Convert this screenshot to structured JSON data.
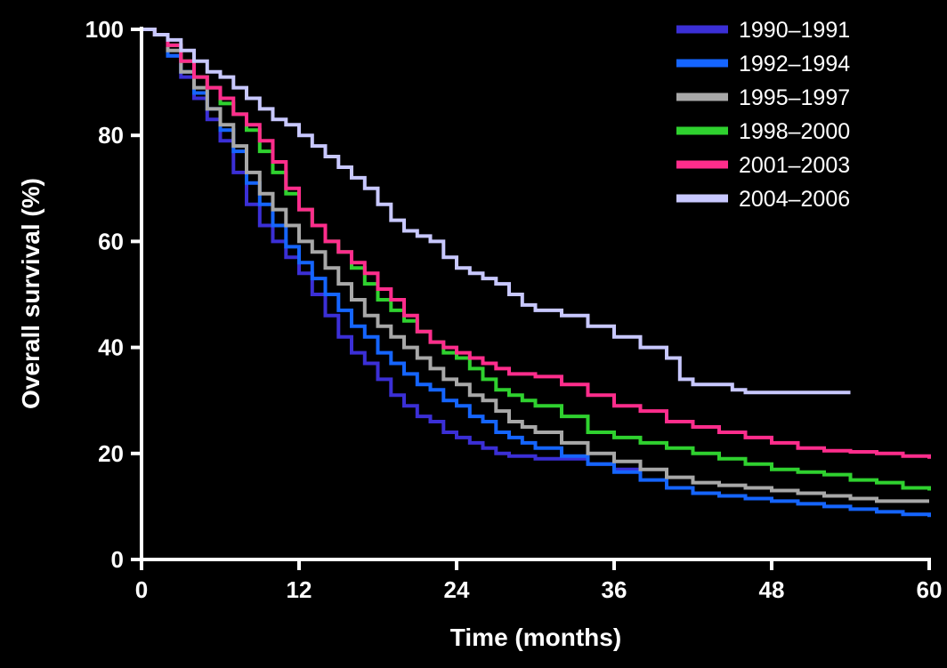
{
  "chart_data": {
    "type": "line",
    "title": "",
    "xlabel": "Time (months)",
    "ylabel": "Overall survival (%)",
    "xlim": [
      0,
      60
    ],
    "ylim": [
      0,
      100
    ],
    "xticks": [
      0,
      12,
      24,
      36,
      48,
      60
    ],
    "yticks": [
      0,
      20,
      40,
      60,
      80,
      100
    ],
    "grid": false,
    "legend_position": "top-right",
    "step": true,
    "series": [
      {
        "name": "1990–1991",
        "color": "#3b2fd6",
        "points": [
          [
            0,
            100
          ],
          [
            1,
            99
          ],
          [
            2,
            95
          ],
          [
            3,
            91
          ],
          [
            4,
            87
          ],
          [
            5,
            83
          ],
          [
            6,
            79
          ],
          [
            7,
            73
          ],
          [
            8,
            67
          ],
          [
            9,
            63
          ],
          [
            10,
            60
          ],
          [
            11,
            57
          ],
          [
            12,
            54
          ],
          [
            13,
            50
          ],
          [
            14,
            46
          ],
          [
            15,
            42
          ],
          [
            16,
            39
          ],
          [
            17,
            37
          ],
          [
            18,
            34
          ],
          [
            19,
            31
          ],
          [
            20,
            29
          ],
          [
            21,
            27
          ],
          [
            22,
            26
          ],
          [
            23,
            24
          ],
          [
            24,
            23
          ],
          [
            25,
            22
          ],
          [
            26,
            21
          ],
          [
            27,
            20
          ],
          [
            28,
            19.5
          ],
          [
            30,
            19
          ],
          [
            32,
            19
          ],
          [
            34,
            18
          ],
          [
            36,
            17
          ],
          [
            38,
            15.5
          ]
        ]
      },
      {
        "name": "1992–1994",
        "color": "#1565ff",
        "points": [
          [
            0,
            100
          ],
          [
            1,
            99
          ],
          [
            2,
            95
          ],
          [
            3,
            92
          ],
          [
            4,
            88
          ],
          [
            5,
            85
          ],
          [
            6,
            81
          ],
          [
            7,
            77
          ],
          [
            8,
            71
          ],
          [
            9,
            67
          ],
          [
            10,
            63
          ],
          [
            11,
            59
          ],
          [
            12,
            56
          ],
          [
            13,
            53
          ],
          [
            14,
            50
          ],
          [
            15,
            47
          ],
          [
            16,
            44
          ],
          [
            17,
            42
          ],
          [
            18,
            39
          ],
          [
            19,
            37
          ],
          [
            20,
            35
          ],
          [
            21,
            33
          ],
          [
            22,
            32
          ],
          [
            23,
            30
          ],
          [
            24,
            29
          ],
          [
            25,
            27
          ],
          [
            26,
            26
          ],
          [
            27,
            24
          ],
          [
            28,
            23
          ],
          [
            29,
            22
          ],
          [
            30,
            21
          ],
          [
            32,
            19.5
          ],
          [
            34,
            18
          ],
          [
            36,
            16.5
          ],
          [
            38,
            15
          ],
          [
            40,
            13.5
          ],
          [
            42,
            12.5
          ],
          [
            44,
            12
          ],
          [
            46,
            11.5
          ],
          [
            48,
            11
          ],
          [
            50,
            10.5
          ],
          [
            52,
            10
          ],
          [
            54,
            9.5
          ],
          [
            56,
            9
          ],
          [
            58,
            8.5
          ],
          [
            60,
            8
          ]
        ]
      },
      {
        "name": "1995–1997",
        "color": "#a8a8a8",
        "points": [
          [
            0,
            100
          ],
          [
            1,
            99
          ],
          [
            2,
            96
          ],
          [
            3,
            92
          ],
          [
            4,
            89
          ],
          [
            5,
            85
          ],
          [
            6,
            82
          ],
          [
            7,
            78
          ],
          [
            8,
            73
          ],
          [
            9,
            69
          ],
          [
            10,
            66
          ],
          [
            11,
            63
          ],
          [
            12,
            60
          ],
          [
            13,
            58
          ],
          [
            14,
            55
          ],
          [
            15,
            52
          ],
          [
            16,
            49
          ],
          [
            17,
            46
          ],
          [
            18,
            44
          ],
          [
            19,
            42
          ],
          [
            20,
            40
          ],
          [
            21,
            38
          ],
          [
            22,
            36
          ],
          [
            23,
            34
          ],
          [
            24,
            33
          ],
          [
            25,
            31
          ],
          [
            26,
            30
          ],
          [
            27,
            28
          ],
          [
            28,
            26
          ],
          [
            29,
            25
          ],
          [
            30,
            24
          ],
          [
            32,
            22
          ],
          [
            34,
            20
          ],
          [
            36,
            18.5
          ],
          [
            38,
            17
          ],
          [
            40,
            15.5
          ],
          [
            42,
            14.5
          ],
          [
            44,
            14
          ],
          [
            46,
            13.5
          ],
          [
            48,
            13
          ],
          [
            50,
            12.5
          ],
          [
            52,
            12
          ],
          [
            54,
            11.5
          ],
          [
            56,
            11
          ],
          [
            58,
            11
          ],
          [
            60,
            11
          ]
        ]
      },
      {
        "name": "1998–2000",
        "color": "#2fd12f",
        "points": [
          [
            0,
            100
          ],
          [
            1,
            99
          ],
          [
            2,
            97
          ],
          [
            3,
            94
          ],
          [
            4,
            91
          ],
          [
            5,
            89
          ],
          [
            6,
            86
          ],
          [
            7,
            84
          ],
          [
            8,
            81
          ],
          [
            9,
            77
          ],
          [
            10,
            73
          ],
          [
            11,
            69
          ],
          [
            12,
            66
          ],
          [
            13,
            63
          ],
          [
            14,
            60
          ],
          [
            15,
            58
          ],
          [
            16,
            55
          ],
          [
            17,
            52
          ],
          [
            18,
            49
          ],
          [
            19,
            47
          ],
          [
            20,
            45
          ],
          [
            21,
            43
          ],
          [
            22,
            41
          ],
          [
            23,
            39
          ],
          [
            24,
            38
          ],
          [
            25,
            36
          ],
          [
            26,
            34
          ],
          [
            27,
            32
          ],
          [
            28,
            31
          ],
          [
            29,
            30
          ],
          [
            30,
            29
          ],
          [
            32,
            27
          ],
          [
            34,
            24
          ],
          [
            36,
            23
          ],
          [
            38,
            22
          ],
          [
            40,
            21
          ],
          [
            42,
            20
          ],
          [
            44,
            19
          ],
          [
            46,
            18
          ],
          [
            48,
            17
          ],
          [
            50,
            16.5
          ],
          [
            52,
            16
          ],
          [
            54,
            15
          ],
          [
            56,
            14.5
          ],
          [
            58,
            13.5
          ],
          [
            60,
            13
          ]
        ]
      },
      {
        "name": "2001–2003",
        "color": "#ff2d8c",
        "points": [
          [
            0,
            100
          ],
          [
            1,
            99
          ],
          [
            2,
            97
          ],
          [
            3,
            94
          ],
          [
            4,
            91
          ],
          [
            5,
            89
          ],
          [
            6,
            87
          ],
          [
            7,
            84
          ],
          [
            8,
            82
          ],
          [
            9,
            79
          ],
          [
            10,
            75
          ],
          [
            11,
            70
          ],
          [
            12,
            66
          ],
          [
            13,
            63
          ],
          [
            14,
            60
          ],
          [
            15,
            58
          ],
          [
            16,
            56
          ],
          [
            17,
            54
          ],
          [
            18,
            51
          ],
          [
            19,
            49
          ],
          [
            20,
            46
          ],
          [
            21,
            43
          ],
          [
            22,
            41
          ],
          [
            23,
            40
          ],
          [
            24,
            39
          ],
          [
            25,
            38
          ],
          [
            26,
            37
          ],
          [
            27,
            36
          ],
          [
            28,
            35
          ],
          [
            30,
            34.5
          ],
          [
            32,
            33
          ],
          [
            34,
            31
          ],
          [
            36,
            29
          ],
          [
            38,
            28
          ],
          [
            40,
            26
          ],
          [
            42,
            25
          ],
          [
            44,
            24
          ],
          [
            46,
            23
          ],
          [
            48,
            22
          ],
          [
            50,
            21
          ],
          [
            52,
            20.5
          ],
          [
            54,
            20.3
          ],
          [
            56,
            20
          ],
          [
            58,
            19.5
          ],
          [
            60,
            19
          ]
        ]
      },
      {
        "name": "2004–2006",
        "color": "#c8c8ff",
        "points": [
          [
            0,
            100
          ],
          [
            1,
            99
          ],
          [
            2,
            98
          ],
          [
            3,
            96
          ],
          [
            4,
            94
          ],
          [
            5,
            92
          ],
          [
            6,
            91
          ],
          [
            7,
            89
          ],
          [
            8,
            87
          ],
          [
            9,
            85
          ],
          [
            10,
            83
          ],
          [
            11,
            82
          ],
          [
            12,
            80
          ],
          [
            13,
            78
          ],
          [
            14,
            76
          ],
          [
            15,
            74
          ],
          [
            16,
            72
          ],
          [
            17,
            70
          ],
          [
            18,
            67
          ],
          [
            19,
            64
          ],
          [
            20,
            62
          ],
          [
            21,
            61
          ],
          [
            22,
            60
          ],
          [
            23,
            57
          ],
          [
            24,
            55
          ],
          [
            25,
            54
          ],
          [
            26,
            53
          ],
          [
            27,
            52
          ],
          [
            28,
            50
          ],
          [
            29,
            48
          ],
          [
            30,
            47
          ],
          [
            32,
            46
          ],
          [
            34,
            44
          ],
          [
            36,
            42
          ],
          [
            38,
            40
          ],
          [
            40,
            38
          ],
          [
            41,
            34
          ],
          [
            42,
            33
          ],
          [
            44,
            33
          ],
          [
            45,
            32
          ],
          [
            46,
            31.5
          ],
          [
            50,
            31.5
          ],
          [
            54,
            31.5
          ]
        ]
      }
    ]
  }
}
